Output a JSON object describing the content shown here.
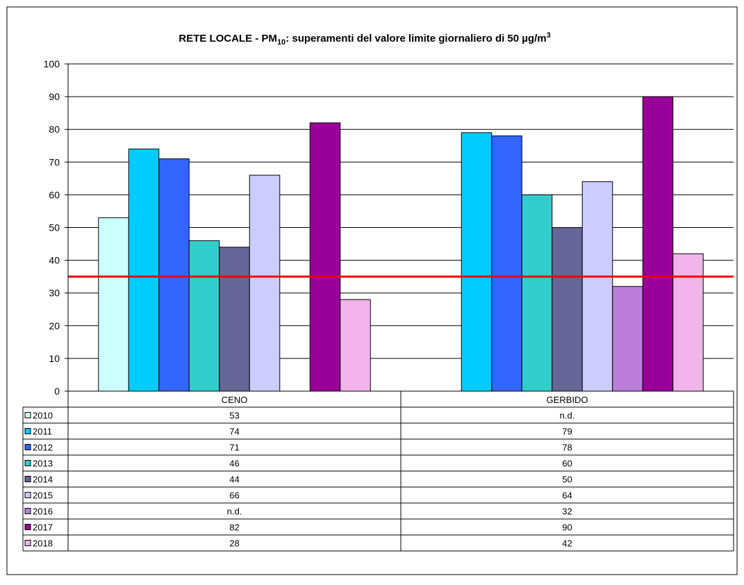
{
  "chart_data": {
    "type": "bar",
    "title": {
      "prefix": "RETE LOCALE - PM",
      "prefix_sub": "10",
      "middle": ": superamenti del valore limite giornaliero di 50 µg/m",
      "suffix_sup": "3"
    },
    "categories": [
      "CENO",
      "GERBIDO"
    ],
    "series": [
      {
        "name": "2010",
        "color": "#ccffff",
        "values": [
          53,
          null
        ],
        "labels": [
          "53",
          "n.d."
        ]
      },
      {
        "name": "2011",
        "color": "#00ccff",
        "values": [
          74,
          79
        ],
        "labels": [
          "74",
          "79"
        ]
      },
      {
        "name": "2012",
        "color": "#3366ff",
        "values": [
          71,
          78
        ],
        "labels": [
          "71",
          "78"
        ]
      },
      {
        "name": "2013",
        "color": "#33cccc",
        "values": [
          46,
          60
        ],
        "labels": [
          "46",
          "60"
        ]
      },
      {
        "name": "2014",
        "color": "#666699",
        "values": [
          44,
          50
        ],
        "labels": [
          "44",
          "50"
        ]
      },
      {
        "name": "2015",
        "color": "#ccccff",
        "values": [
          66,
          64
        ],
        "labels": [
          "66",
          "64"
        ]
      },
      {
        "name": "2016",
        "color": "#bb7fdb",
        "values": [
          null,
          32
        ],
        "labels": [
          "n.d.",
          "32"
        ]
      },
      {
        "name": "2017",
        "color": "#990099",
        "values": [
          82,
          90
        ],
        "labels": [
          "82",
          "90"
        ]
      },
      {
        "name": "2018",
        "color": "#f2b3ea",
        "values": [
          28,
          42
        ],
        "labels": [
          "28",
          "42"
        ]
      }
    ],
    "ylim": [
      0,
      100
    ],
    "yticks": [
      0,
      10,
      20,
      30,
      40,
      50,
      60,
      70,
      80,
      90,
      100
    ],
    "grid": true,
    "reference_line": {
      "value": 35,
      "color": "#ee0000"
    },
    "legend_placement": "data-table-left"
  }
}
